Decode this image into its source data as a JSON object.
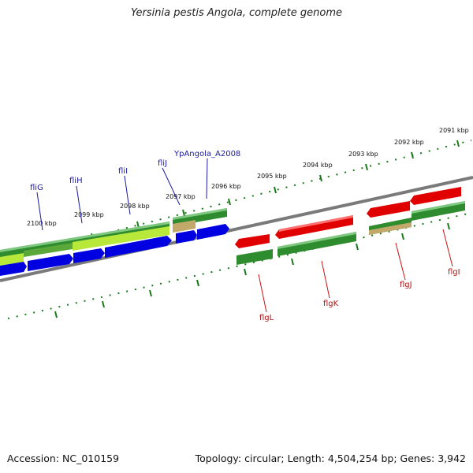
{
  "title": "Yersinia pestis Angola, complete genome",
  "footer": {
    "accession": "Accession: NC_010159",
    "topology": "Topology: circular; Length: 4,504,254 bp; Genes: 3,942"
  },
  "colors": {
    "forward_cds": "#2e8b2e",
    "reverse_cds": "#e00000",
    "blue_feature": "#0000e0",
    "yellow_green": "#b7e83a",
    "tan": "#c2a86a",
    "backbone": "#7a7a7a",
    "ticks": "#1a7a1a",
    "label_blue": "#1a1aa0",
    "label_red": "#b01010"
  },
  "ruler_labels": [
    "2091 kbp",
    "2092 kbp",
    "2093 kbp",
    "2094 kbp",
    "2095 kbp",
    "2096 kbp",
    "2097 kbp",
    "2098 kbp",
    "2099 kbp",
    "2100 kbp"
  ],
  "upper_gene_labels": [
    "fliG",
    "fliH",
    "fliI",
    "fliJ",
    "YpAngola_A2008"
  ],
  "lower_gene_labels": [
    "flgL",
    "flgK",
    "flgJ",
    "flgI"
  ]
}
